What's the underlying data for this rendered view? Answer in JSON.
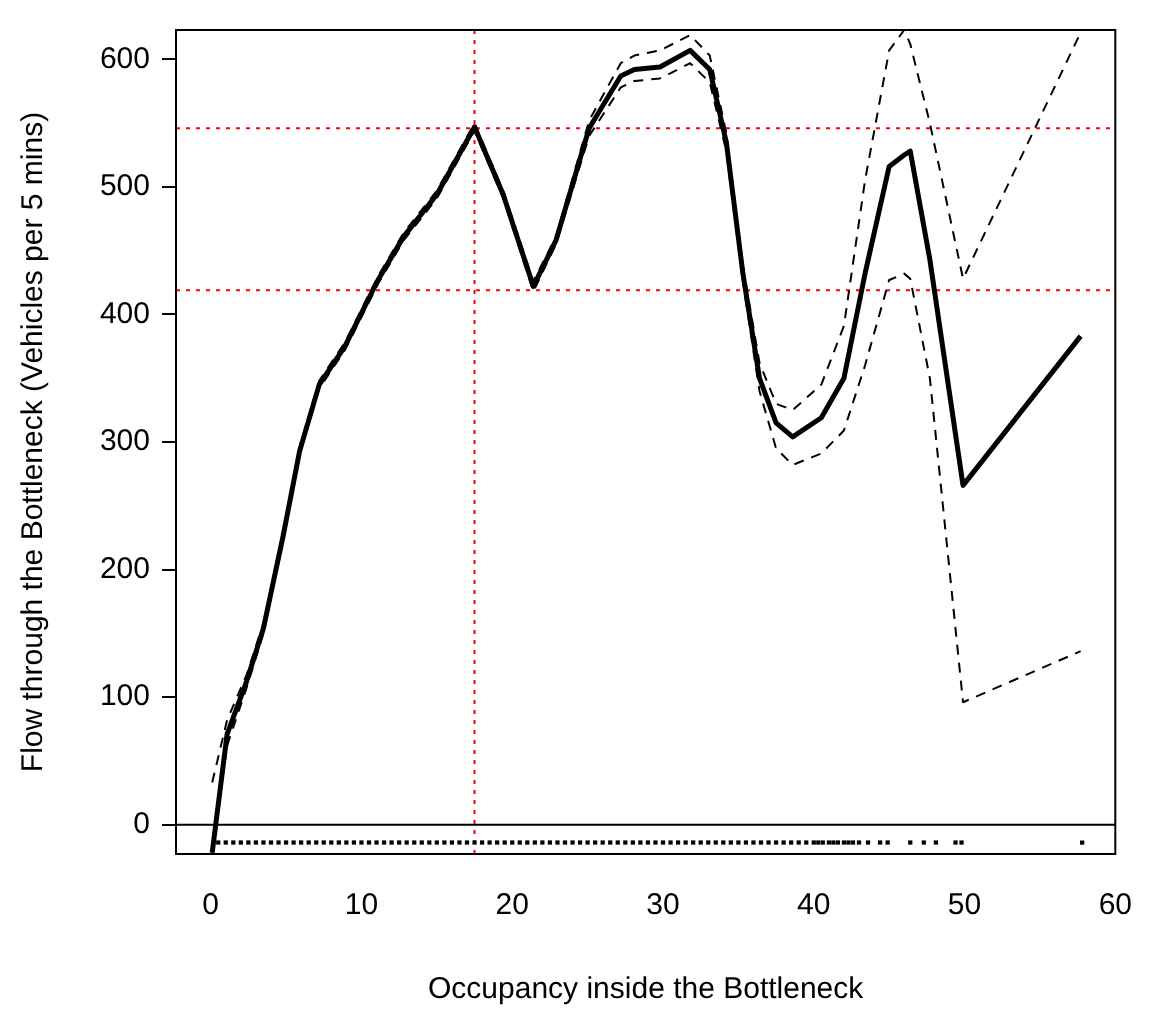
{
  "chart_data": {
    "type": "line",
    "xlabel": "Occupancy inside the Bottleneck",
    "ylabel": "Flow through the Bottleneck (Vehicles per 5 mins)",
    "xlim": [
      -2.3,
      60
    ],
    "xticks": [
      0,
      10,
      20,
      30,
      40,
      50,
      60
    ],
    "ylim": [
      -23,
      623
    ],
    "yticks": [
      0,
      100,
      200,
      300,
      400,
      500,
      600
    ],
    "grid": false,
    "legend": false,
    "marker": "none",
    "series": [
      {
        "color": "#000000",
        "line_style": "solid",
        "x": [
          0.1,
          1.09,
          2.4,
          3.5,
          4.8,
          5.9,
          7.2,
          8.9,
          11.1,
          12.8,
          15.0,
          17.5,
          19.4,
          21.4,
          22.9,
          25.1,
          27.2,
          28.1,
          29.8,
          31.8,
          33.1,
          34.2,
          35.3,
          36.4,
          37.5,
          38.6,
          40.5,
          42.0,
          43.4,
          45.0,
          46.0,
          46.4,
          47.7,
          49.9,
          57.7
        ],
        "values": [
          -22,
          71,
          113,
          154,
          226,
          293,
          345,
          375,
          427,
          461,
          494,
          547,
          494,
          422,
          458,
          546,
          587,
          592,
          594,
          607,
          592,
          535,
          432,
          350,
          315,
          304,
          319,
          350,
          432,
          516,
          525,
          528,
          443,
          266,
          383
        ]
      },
      {
        "color": "#000000",
        "line_style": "dashed",
        "x": [
          0.1,
          1.09,
          2.4,
          3.5,
          4.8,
          5.9,
          7.2,
          8.9,
          11.1,
          12.8,
          15.0,
          17.5,
          19.4,
          21.4,
          22.9,
          25.1,
          27.2,
          28.1,
          29.8,
          31.8,
          33.1,
          34.2,
          35.3,
          36.4,
          37.5,
          38.6,
          40.5,
          42.0,
          43.4,
          45.0,
          46.0,
          46.4,
          47.7,
          49.9,
          57.7
        ],
        "values": [
          33,
          82,
          118,
          158,
          229,
          296,
          348,
          378,
          430,
          464,
          497,
          550,
          497,
          426,
          461,
          552,
          597,
          603,
          607,
          619,
          603,
          542,
          438,
          362,
          330,
          325,
          345,
          391,
          505,
          607,
          623,
          612,
          550,
          428,
          621
        ]
      },
      {
        "color": "#000000",
        "line_style": "dashed",
        "x": [
          0.1,
          1.09,
          2.4,
          3.5,
          4.8,
          5.9,
          7.2,
          8.9,
          11.1,
          12.8,
          15.0,
          17.5,
          19.4,
          21.4,
          22.9,
          25.1,
          27.2,
          28.1,
          29.8,
          31.8,
          33.1,
          34.2,
          35.3,
          36.4,
          37.5,
          38.6,
          40.5,
          42.0,
          43.4,
          45.0,
          46.0,
          46.4,
          47.7,
          49.9,
          57.7
        ],
        "values": [
          -22,
          62,
          108,
          150,
          223,
          290,
          342,
          372,
          424,
          458,
          491,
          544,
          491,
          418,
          455,
          540,
          578,
          583,
          585,
          597,
          582,
          528,
          426,
          340,
          295,
          282,
          291,
          309,
          360,
          427,
          432,
          428,
          350,
          96,
          136
        ]
      },
      {
        "type": "scatter",
        "marker": "square",
        "color": "#000000",
        "x": [
          0.5,
          1,
          1.5,
          2,
          2.5,
          3,
          3.5,
          4,
          4.5,
          5,
          5.5,
          6,
          6.5,
          7,
          7.5,
          8,
          8.5,
          9,
          9.5,
          10,
          10.5,
          11,
          11.5,
          12,
          12.5,
          13,
          13.5,
          14,
          14.5,
          15,
          15.5,
          16,
          16.5,
          17,
          17.5,
          18,
          18.5,
          19,
          19.5,
          20,
          20.5,
          21,
          21.5,
          22,
          22.5,
          23,
          23.5,
          24,
          24.5,
          25,
          25.5,
          26,
          26.5,
          27,
          27.5,
          28,
          28.5,
          29,
          29.5,
          30,
          30.5,
          31,
          31.5,
          32,
          32.5,
          33,
          33.5,
          34,
          34.5,
          35,
          35.5,
          36,
          36.5,
          37,
          37.5,
          38,
          38.5,
          39,
          39.5,
          40,
          40.3,
          40.6,
          41,
          41.3,
          41.6,
          42,
          42.3,
          42.6,
          43,
          43.6,
          44.4,
          44.9,
          46.4,
          47.3,
          48.1,
          49.4,
          49.8,
          57.8
        ],
        "values": [
          -14,
          -14,
          -14,
          -14,
          -14,
          -14,
          -14,
          -14,
          -14,
          -14,
          -14,
          -14,
          -14,
          -14,
          -14,
          -14,
          -14,
          -14,
          -14,
          -14,
          -14,
          -14,
          -14,
          -14,
          -14,
          -14,
          -14,
          -14,
          -14,
          -14,
          -14,
          -14,
          -14,
          -14,
          -14,
          -14,
          -14,
          -14,
          -14,
          -14,
          -14,
          -14,
          -14,
          -14,
          -14,
          -14,
          -14,
          -14,
          -14,
          -14,
          -14,
          -14,
          -14,
          -14,
          -14,
          -14,
          -14,
          -14,
          -14,
          -14,
          -14,
          -14,
          -14,
          -14,
          -14,
          -14,
          -14,
          -14,
          -14,
          -14,
          -14,
          -14,
          -14,
          -14,
          -14,
          -14,
          -14,
          -14,
          -14,
          -14,
          -14,
          -14,
          -14,
          -14,
          -14,
          -14,
          -14,
          -14,
          -14,
          -14,
          -14,
          -14,
          -14,
          -14,
          -14,
          -14,
          -14,
          -14
        ]
      }
    ],
    "ref_lines": [
      {
        "axis": "y",
        "value": 0,
        "color": "#000000",
        "line_style": "solid"
      },
      {
        "axis": "y",
        "value": 546,
        "color": "#ff0000",
        "line_style": "dotted"
      },
      {
        "axis": "y",
        "value": 419,
        "color": "#ff0000",
        "line_style": "dotted"
      },
      {
        "axis": "x",
        "value": 17.5,
        "color": "#ff0000",
        "line_style": "dotted"
      }
    ]
  }
}
